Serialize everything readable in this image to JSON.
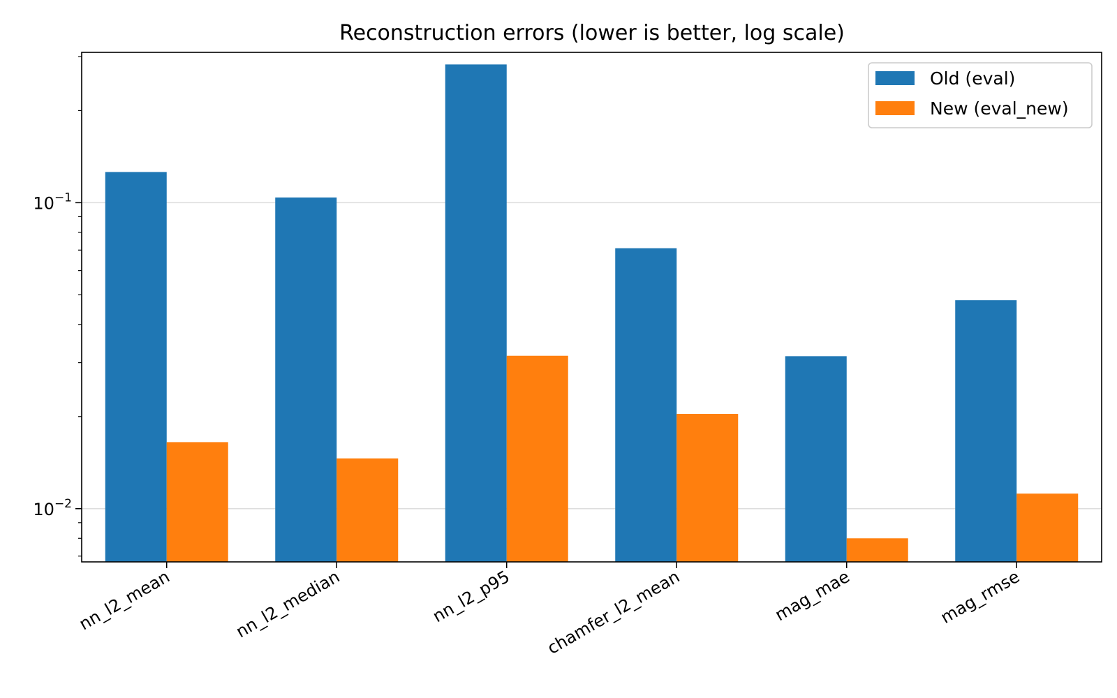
{
  "chart_data": {
    "type": "bar",
    "title": "Reconstruction errors (lower is better, log scale)",
    "xlabel": "",
    "ylabel": "",
    "yscale": "log",
    "ylim": [
      0.0067,
      0.31
    ],
    "categories": [
      "nn_l2_mean",
      "nn_l2_median",
      "nn_l2_p95",
      "chamfer_l2_mean",
      "mag_mae",
      "mag_rmse"
    ],
    "series": [
      {
        "name": "Old (eval)",
        "color": "#1f77b4",
        "values": [
          0.126,
          0.104,
          0.283,
          0.071,
          0.0315,
          0.048
        ]
      },
      {
        "name": "New (eval_new)",
        "color": "#ff7f0e",
        "values": [
          0.0165,
          0.0146,
          0.0316,
          0.0204,
          0.008,
          0.0112
        ]
      }
    ],
    "y_ticks": [
      {
        "base": "10",
        "exp": "−1",
        "value": 0.1
      },
      {
        "base": "10",
        "exp": "−2",
        "value": 0.01
      }
    ],
    "grid": "horizontal major gridlines",
    "legend_position": "top-right"
  }
}
